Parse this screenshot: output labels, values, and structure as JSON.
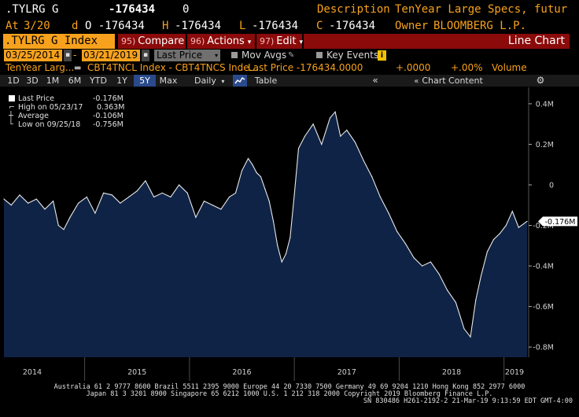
{
  "header": {
    "ticker": ".TYLRG G",
    "last_price": "-176434",
    "change": "0",
    "desc_label": "Description",
    "desc_value": "TenYear Large Specs, futur",
    "at_label": "At",
    "at_value": "3/20",
    "d_label": "d",
    "d_value": "O -176434",
    "h_label": "H",
    "h_value": "-176434",
    "l_label": "L",
    "l_value": "-176434",
    "c_label": "C",
    "c_value": "-176434",
    "owner_label": "Owner",
    "owner_value": "BLOOMBERG L.P."
  },
  "toolbar": {
    "ticker_box": ".TYLRG G Index",
    "compare_num": "95)",
    "compare_label": "Compare",
    "actions_num": "96)",
    "actions_label": "Actions",
    "edit_num": "97)",
    "edit_label": "Edit",
    "chart_type": "Line Chart"
  },
  "settings": {
    "start_date": "03/25/2014",
    "end_date": "03/21/2019",
    "field": "Last Price",
    "mov_avgs": "Mov Avgs",
    "key_events": "Key Events"
  },
  "security_row": {
    "short_name": "TenYear Larg...",
    "indices": "CBT4TNCL Index - CBT4TNCS Inde...",
    "last_price": "Last Price -176434.0000",
    "change": "+.0000",
    "pct_change": "+.00%",
    "volume": "Volume"
  },
  "periods": [
    "1D",
    "3D",
    "1M",
    "6M",
    "YTD",
    "1Y",
    "5Y",
    "Max"
  ],
  "active_period": "5Y",
  "frequency": "Daily",
  "table_label": "Table",
  "chart_content_label": "Chart Content",
  "legend": {
    "last_price_label": "Last Price",
    "last_price_value": "-0.176M",
    "high_label": "High on 05/23/17",
    "high_value": "0.363M",
    "average_label": "Average",
    "average_value": "-0.106M",
    "low_label": "Low on 09/25/18",
    "low_value": "-0.756M"
  },
  "current_label": "-0.176M",
  "colors": {
    "accent": "#f7a11c",
    "button_red": "#8b0a0a",
    "area_fill": "#0f2346",
    "line": "#e8e8e8",
    "active_period": "#2a4a8c"
  },
  "chart_data": {
    "type": "area",
    "title": "",
    "xlabel": "",
    "ylabel": "",
    "ylim": [
      -0.85,
      0.45
    ],
    "y_ticks": [
      0.4,
      0.2,
      0,
      -0.2,
      -0.4,
      -0.6,
      -0.8
    ],
    "y_tick_labels": [
      "0.4M",
      "0.2M",
      "0",
      "-0.2M",
      "-0.4M",
      "-0.6M",
      "-0.8M"
    ],
    "x_tick_labels": [
      "2014",
      "2015",
      "2016",
      "2017",
      "2018",
      "2019"
    ],
    "x_tick_years": [
      2014.5,
      2015.5,
      2016.5,
      2017.5,
      2018.5,
      2019.1
    ],
    "x_range": [
      2014.23,
      2019.22
    ],
    "x_separators": [
      2015.0,
      2016.0,
      2017.0,
      2018.0,
      2019.0
    ],
    "grid": false,
    "series": [
      {
        "name": "Last Price",
        "x": [
          2014.23,
          2014.3,
          2014.38,
          2014.46,
          2014.54,
          2014.62,
          2014.7,
          2014.75,
          2014.8,
          2014.86,
          2014.94,
          2015.02,
          2015.1,
          2015.18,
          2015.26,
          2015.34,
          2015.42,
          2015.5,
          2015.58,
          2015.66,
          2015.74,
          2015.82,
          2015.9,
          2015.98,
          2016.06,
          2016.14,
          2016.22,
          2016.3,
          2016.38,
          2016.44,
          2016.5,
          2016.56,
          2016.6,
          2016.64,
          2016.68,
          2016.72,
          2016.76,
          2016.8,
          2016.84,
          2016.88,
          2016.92,
          2016.96,
          2017.0,
          2017.04,
          2017.1,
          2017.18,
          2017.26,
          2017.34,
          2017.39,
          2017.44,
          2017.5,
          2017.58,
          2017.66,
          2017.74,
          2017.82,
          2017.9,
          2017.98,
          2018.06,
          2018.14,
          2018.22,
          2018.3,
          2018.38,
          2018.46,
          2018.54,
          2018.62,
          2018.68,
          2018.73,
          2018.78,
          2018.84,
          2018.9,
          2018.96,
          2019.02,
          2019.08,
          2019.14,
          2019.22
        ],
        "y": [
          -0.07,
          -0.1,
          -0.05,
          -0.09,
          -0.07,
          -0.12,
          -0.08,
          -0.2,
          -0.22,
          -0.16,
          -0.09,
          -0.06,
          -0.14,
          -0.04,
          -0.05,
          -0.09,
          -0.06,
          -0.03,
          0.02,
          -0.06,
          -0.04,
          -0.06,
          0.0,
          -0.04,
          -0.16,
          -0.08,
          -0.1,
          -0.12,
          -0.06,
          -0.04,
          0.07,
          0.13,
          0.1,
          0.06,
          0.04,
          -0.02,
          -0.08,
          -0.18,
          -0.3,
          -0.38,
          -0.34,
          -0.26,
          -0.05,
          0.18,
          0.24,
          0.3,
          0.2,
          0.33,
          0.36,
          0.24,
          0.27,
          0.21,
          0.12,
          0.04,
          -0.06,
          -0.14,
          -0.23,
          -0.29,
          -0.36,
          -0.4,
          -0.38,
          -0.44,
          -0.52,
          -0.58,
          -0.71,
          -0.75,
          -0.57,
          -0.45,
          -0.33,
          -0.27,
          -0.24,
          -0.2,
          -0.13,
          -0.21,
          -0.18
        ]
      }
    ]
  },
  "footer": {
    "line1": "Australia 61 2 9777 8600 Brazil 5511 2395 9000 Europe 44 20 7330 7500 Germany 49 69 9204 1210 Hong Kong 852 2977 6000",
    "line2": "Japan 81 3 3201 8900        Singapore 65 6212 1000        U.S. 1 212 318 2000                Copyright 2019 Bloomberg Finance L.P.",
    "line3": "SN 830486 H261-2192-2 21-Mar-19  9:13:59 EDT  GMT-4:00"
  }
}
